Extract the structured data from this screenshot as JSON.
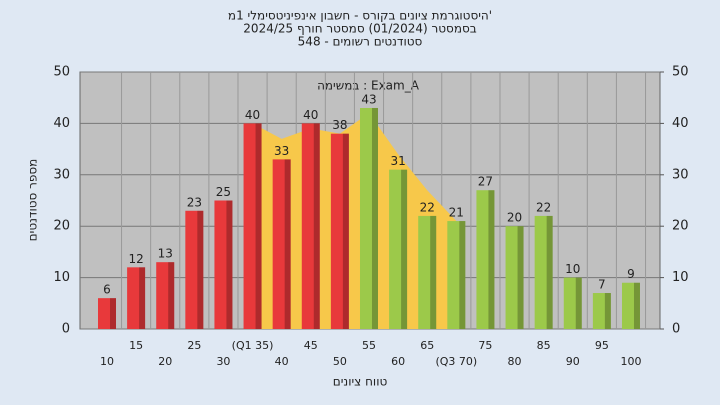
{
  "chart_data": {
    "type": "bar",
    "title": [
      "היסטוגרמת ציונים בקורס - חשבון אינפיניטסימלי 1מ'",
      "בסמסטר (01/2024) סמסטר חורף 2024/25",
      "סטודנטים רשומים - 548"
    ],
    "annotation": "במשימה : Exam_A",
    "x_label": "טווח ציונים",
    "y_label": "מספר סטודנטים",
    "categories": [
      "10",
      "15",
      "20",
      "25",
      "30",
      "(Q1 35)",
      "40",
      "45",
      "50",
      "55",
      "60",
      "65",
      "(Q3 70)",
      "75",
      "80",
      "85",
      "90",
      "95",
      "100"
    ],
    "values": [
      6,
      12,
      13,
      23,
      25,
      40,
      33,
      40,
      38,
      43,
      31,
      22,
      21,
      27,
      20,
      22,
      10,
      7,
      9
    ],
    "colors": [
      "#e8393b",
      "#e8393b",
      "#e8393b",
      "#e8393b",
      "#e8393b",
      "#e8393b",
      "#e8393b",
      "#e8393b",
      "#e8393b",
      "#9cc94a",
      "#9cc94a",
      "#9cc94a",
      "#9cc94a",
      "#9cc94a",
      "#9cc94a",
      "#9cc94a",
      "#9cc94a",
      "#9cc94a",
      "#9cc94a"
    ],
    "area": {
      "color": "#f7c84a",
      "values": [
        null,
        null,
        null,
        null,
        null,
        40,
        37,
        39,
        38,
        42,
        34,
        27,
        21,
        null,
        null,
        null,
        null,
        null,
        null
      ]
    },
    "ylim": [
      0,
      50
    ],
    "yticks": [
      0,
      10,
      20,
      30,
      40,
      50
    ],
    "y2lim": [
      0,
      50
    ],
    "y2ticks": [
      0,
      10,
      20,
      30,
      40,
      50
    ],
    "grid": true
  }
}
